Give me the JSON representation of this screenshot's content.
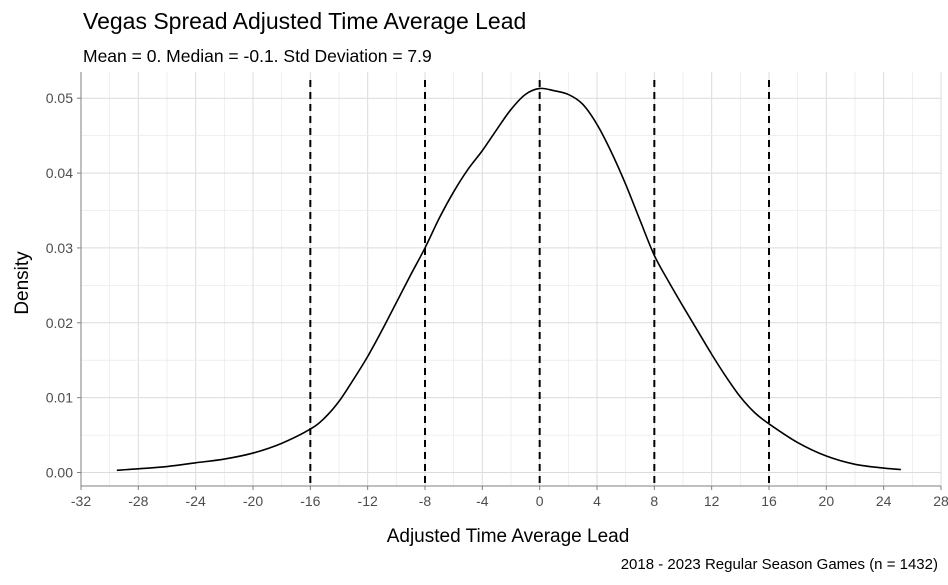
{
  "chart_data": {
    "type": "line",
    "title": "Vegas Spread Adjusted Time Average Lead",
    "subtitle": "Mean = 0. Median = -0.1. Std Deviation = 7.9",
    "caption": "2018 - 2023 Regular Season Games (n = 1432)",
    "xlabel": "Adjusted Time Average Lead",
    "ylabel": "Density",
    "xlim": [
      -32,
      28
    ],
    "ylim": [
      -0.0018,
      0.0535
    ],
    "x_ticks": [
      -32,
      -28,
      -24,
      -20,
      -16,
      -12,
      -8,
      -4,
      0,
      4,
      8,
      12,
      16,
      20,
      24,
      28
    ],
    "y_ticks": [
      0.0,
      0.01,
      0.02,
      0.03,
      0.04,
      0.05
    ],
    "y_tick_labels": [
      "0.00",
      "0.01",
      "0.02",
      "0.03",
      "0.04",
      "0.05"
    ],
    "grid": true,
    "vlines": [
      -16,
      -8,
      0,
      8,
      16
    ],
    "series": [
      {
        "x": [
          -29.5,
          -28,
          -26,
          -24,
          -22,
          -20,
          -18,
          -16,
          -15,
          -14,
          -13,
          -12,
          -11,
          -10,
          -9,
          -8,
          -7,
          -6,
          -5,
          -4,
          -3,
          -2,
          -1,
          0,
          1,
          2,
          3,
          4,
          5,
          6,
          7,
          8,
          9,
          10,
          11,
          12,
          13,
          14,
          15,
          16,
          18,
          20,
          22,
          24,
          25.2
        ],
        "values": [
          0.0003,
          0.0005,
          0.0008,
          0.0013,
          0.0018,
          0.0026,
          0.0039,
          0.0058,
          0.0073,
          0.0095,
          0.0124,
          0.0155,
          0.019,
          0.0227,
          0.0264,
          0.03,
          0.034,
          0.0375,
          0.0405,
          0.043,
          0.0458,
          0.0485,
          0.0505,
          0.0513,
          0.051,
          0.0505,
          0.0492,
          0.0465,
          0.0428,
          0.0385,
          0.0337,
          0.029,
          0.0255,
          0.0222,
          0.019,
          0.0158,
          0.0128,
          0.0101,
          0.008,
          0.0065,
          0.004,
          0.0022,
          0.0011,
          0.0006,
          0.0004
        ]
      }
    ],
    "colors": {
      "line": "#000000",
      "grid": "#dcdcdc",
      "axis": "#7f7f7f"
    }
  }
}
